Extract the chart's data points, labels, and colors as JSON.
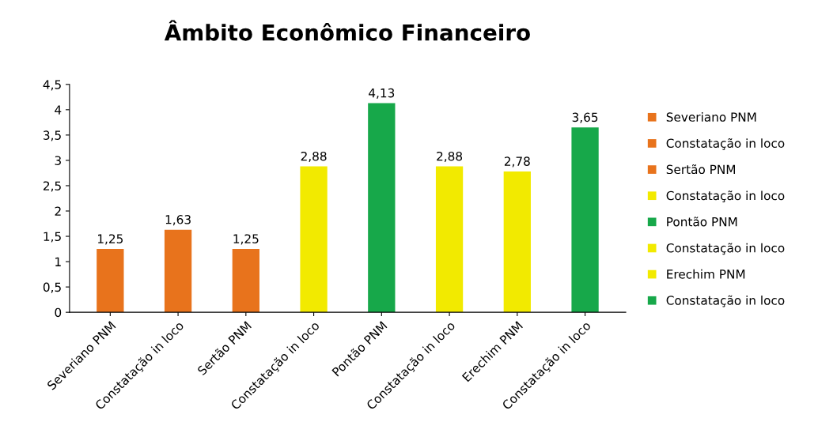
{
  "chart_data": {
    "type": "bar",
    "title": "Âmbito Econômico Financeiro",
    "categories": [
      "Severiano PNM",
      "Constatação in loco",
      "Sertão PNM",
      "Constatação in loco",
      "Pontão PNM",
      "Constatação in loco",
      "Erechim PNM",
      "Constatação in loco"
    ],
    "series": [
      {
        "name": "Severiano PNM",
        "color": "#e8731c",
        "values": [
          1.25,
          null,
          null,
          null,
          null,
          null,
          null,
          null
        ],
        "value_labels": [
          "1,25",
          null,
          null,
          null,
          null,
          null,
          null,
          null
        ]
      },
      {
        "name": "Constatação in loco",
        "color": "#e8731c",
        "values": [
          null,
          1.63,
          null,
          null,
          null,
          null,
          null,
          null
        ],
        "value_labels": [
          null,
          "1,63",
          null,
          null,
          null,
          null,
          null,
          null
        ]
      },
      {
        "name": "Sertão PNM",
        "color": "#e8731c",
        "values": [
          null,
          null,
          1.25,
          null,
          null,
          null,
          null,
          null
        ],
        "value_labels": [
          null,
          null,
          "1,25",
          null,
          null,
          null,
          null,
          null
        ]
      },
      {
        "name": "Constatação in loco",
        "color": "#f2ea00",
        "values": [
          null,
          null,
          null,
          2.88,
          null,
          null,
          null,
          null
        ],
        "value_labels": [
          null,
          null,
          null,
          "2,88",
          null,
          null,
          null,
          null
        ]
      },
      {
        "name": "Pontão PNM",
        "color": "#17a84a",
        "values": [
          null,
          null,
          null,
          null,
          4.13,
          null,
          null,
          null
        ],
        "value_labels": [
          null,
          null,
          null,
          null,
          "4,13",
          null,
          null,
          null
        ]
      },
      {
        "name": "Constatação in loco",
        "color": "#f2ea00",
        "values": [
          null,
          null,
          null,
          null,
          null,
          2.88,
          null,
          null
        ],
        "value_labels": [
          null,
          null,
          null,
          null,
          null,
          "2,88",
          null,
          null
        ]
      },
      {
        "name": "Erechim PNM",
        "color": "#f2ea00",
        "values": [
          null,
          null,
          null,
          null,
          null,
          null,
          2.78,
          null
        ],
        "value_labels": [
          null,
          null,
          null,
          null,
          null,
          null,
          "2,78",
          null
        ]
      },
      {
        "name": "Constatação in loco",
        "color": "#17a84a",
        "values": [
          null,
          null,
          null,
          null,
          null,
          null,
          null,
          3.65
        ],
        "value_labels": [
          null,
          null,
          null,
          null,
          null,
          null,
          null,
          "3,65"
        ]
      }
    ],
    "ylim": [
      0,
      4.5
    ],
    "yticks": [
      0,
      {
        "value": 0.5,
        "label": "0,5"
      },
      1,
      {
        "value": 1.5,
        "label": "1,5"
      },
      2,
      {
        "value": 2.5,
        "label": "2,5"
      },
      3,
      {
        "value": 3.5,
        "label": "3,5"
      },
      4,
      {
        "value": 4.5,
        "label": "4,5"
      }
    ],
    "grid": false,
    "legend": "right"
  }
}
